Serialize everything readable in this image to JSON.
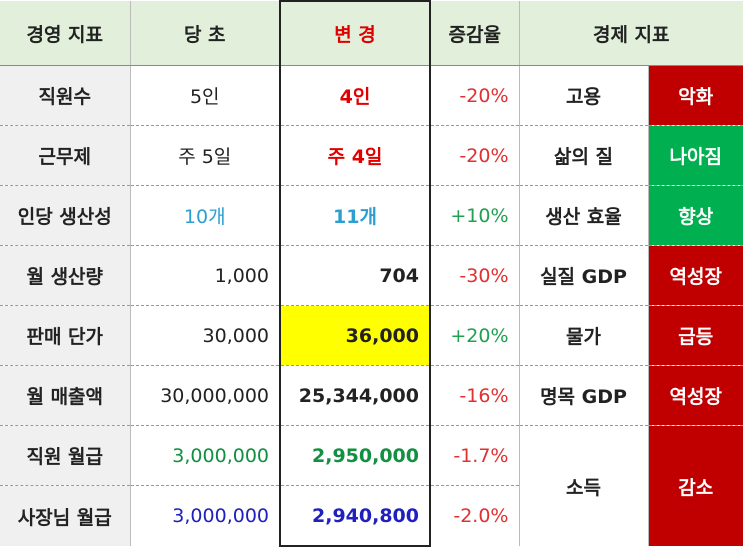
{
  "header": [
    "경영 지표",
    "당 초",
    "변 경",
    "증감율",
    "경제 지표"
  ],
  "rows": [
    {
      "label": "직원수",
      "before": "5인",
      "after": "4인",
      "change": "-20%",
      "indicator": "고용",
      "status": "악화"
    },
    {
      "label": "근무제",
      "before": "주 5일",
      "after": "주 4일",
      "change": "-20%",
      "indicator": "삶의 질",
      "status": "나아짐"
    },
    {
      "label": "인당 생산성",
      "before": "10개",
      "after": "11개",
      "change": "+10%",
      "indicator": "생산 효율",
      "status": "향상"
    },
    {
      "label": "월 생산량",
      "before": "1,000",
      "after": "704",
      "change": "-30%",
      "indicator": "실질 GDP",
      "status": "역성장"
    },
    {
      "label": "판매 단가",
      "before": "30,000",
      "after": "36,000",
      "change": "+20%",
      "indicator": "물가",
      "status": "급등"
    },
    {
      "label": "월 매출액",
      "before": "30,000,000",
      "after": "25,344,000",
      "change": "-16%",
      "indicator": "명목 GDP",
      "status": "역성장"
    },
    {
      "label": "직원 월급",
      "before": "3,000,000",
      "after": "2,950,000",
      "change": "-1.7%",
      "indicator": "소득",
      "status": "감소"
    },
    {
      "label": "사장님 월급",
      "before": "3,000,000",
      "after": "2,940,800",
      "change": "-2.0%"
    }
  ]
}
